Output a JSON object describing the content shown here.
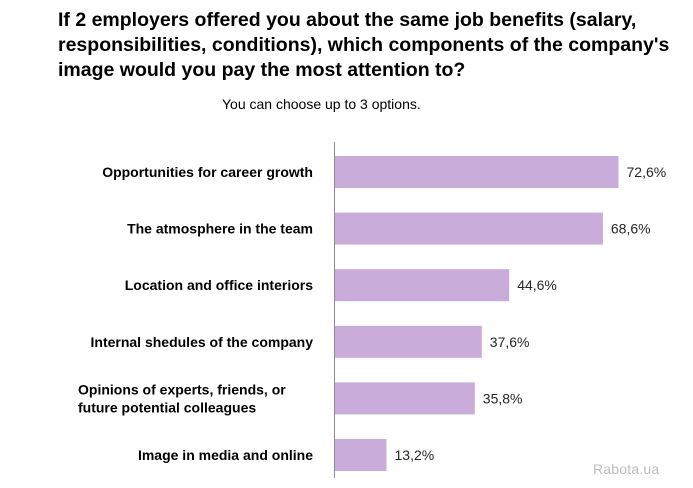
{
  "chart_data": {
    "type": "bar",
    "orientation": "horizontal",
    "title": "If 2 employers offered you about the same job benefits (salary, responsibilities, conditions), which components of the company's image would you pay the most attention to?",
    "subtitle": "You can choose up to 3 options.",
    "categories": [
      "Opportunities for career growth",
      "The atmosphere in the team",
      "Location and office interiors",
      "Internal shedules of the company",
      "Opinions of experts, friends, or future potential colleagues",
      "Image in media and online"
    ],
    "values": [
      72.6,
      68.6,
      44.6,
      37.6,
      35.8,
      13.2
    ],
    "value_labels": [
      "72,6%",
      "68,6%",
      "44,6%",
      "37,6%",
      "35,8%",
      "13,2%"
    ],
    "xlim": [
      0,
      100
    ],
    "grid": false,
    "bar_color": "#c9acd9"
  },
  "watermark": "Rabota.ua"
}
